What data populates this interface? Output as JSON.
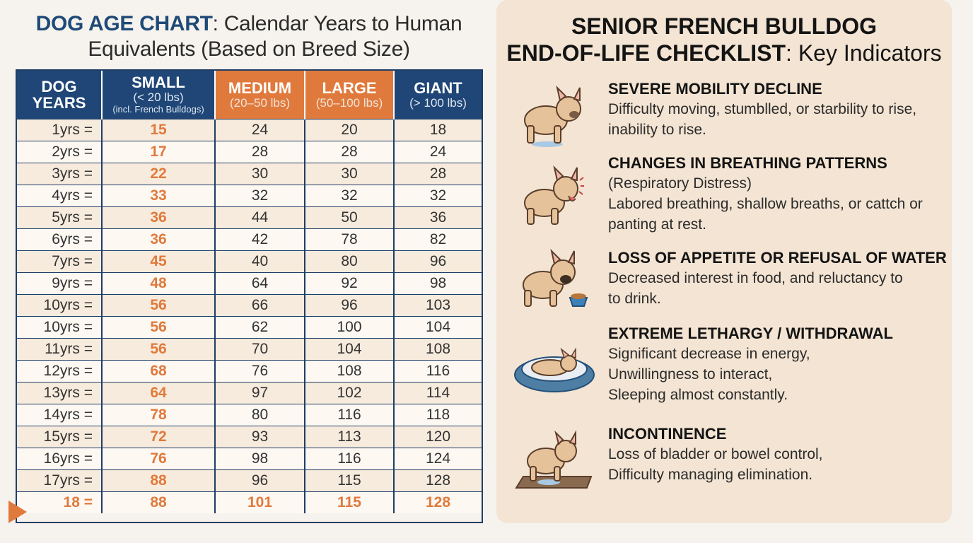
{
  "left": {
    "title_strong": "DOG AGE CHART",
    "title_rest": ": Calendar Years to Human Equivalents (Based on Breed Size)",
    "headers": [
      {
        "main": "DOG YEARS",
        "sub": "",
        "sub2": ""
      },
      {
        "main": "SMALL",
        "sub": "(< 20 lbs)",
        "sub2": "(incl. French Bulldogs)"
      },
      {
        "main": "MEDIUM",
        "sub": "(20–50 lbs)",
        "sub2": ""
      },
      {
        "main": "LARGE",
        "sub": "(50–100 lbs)",
        "sub2": ""
      },
      {
        "main": "GIANT",
        "sub": "(> 100 lbs)",
        "sub2": ""
      }
    ],
    "rows": [
      [
        "1yrs =",
        "15",
        "24",
        "20",
        "18"
      ],
      [
        "2yrs =",
        "17",
        "28",
        "28",
        "24"
      ],
      [
        "3yrs =",
        "22",
        "30",
        "30",
        "28"
      ],
      [
        "4yrs =",
        "33",
        "32",
        "32",
        "32"
      ],
      [
        "5yrs =",
        "36",
        "44",
        "50",
        "36"
      ],
      [
        "6yrs =",
        "36",
        "42",
        "78",
        "82"
      ],
      [
        "7yrs =",
        "45",
        "40",
        "80",
        "96"
      ],
      [
        "9yrs =",
        "48",
        "64",
        "92",
        "98"
      ],
      [
        "10yrs =",
        "56",
        "66",
        "96",
        "103"
      ],
      [
        "10yrs =",
        "56",
        "62",
        "100",
        "104"
      ],
      [
        "11yrs =",
        "56",
        "70",
        "104",
        "108"
      ],
      [
        "12yrs =",
        "68",
        "76",
        "108",
        "116"
      ],
      [
        "13yrs =",
        "64",
        "97",
        "102",
        "114"
      ],
      [
        "14yrs =",
        "78",
        "80",
        "116",
        "118"
      ],
      [
        "15yrs =",
        "72",
        "93",
        "113",
        "120"
      ],
      [
        "16yrs =",
        "76",
        "98",
        "116",
        "124"
      ],
      [
        "17yrs =",
        "88",
        "96",
        "115",
        "128"
      ],
      [
        "18 =",
        "88",
        "101",
        "115",
        "128"
      ]
    ]
  },
  "right": {
    "title_line1": "SENIOR FRENCH BULLDOG",
    "title_line2_strong": "END-OF-LIFE CHECKLIST",
    "title_line2_rest": ": Key Indicators",
    "items": [
      {
        "title": "SEVERE MOBILITY DECLINE",
        "desc": "Difficulty moving, stumblled, or starbility to rise,\ninability to rise.",
        "icon": "dog-standing-icon"
      },
      {
        "title": "CHANGES IN BREATHING PATTERNS",
        "desc": "(Respiratory Distress)\nLabored breathing, shallow breaths, or cattch or\npanting at rest.",
        "icon": "dog-panting-icon"
      },
      {
        "title": "LOSS OF APPETITE OR REFUSAL OF WATER",
        "desc": "Decreased interest in food, and reluctancy to\nto drink.",
        "icon": "dog-food-bowl-icon"
      },
      {
        "title": "EXTREME LETHARGY / WITHDRAWAL",
        "desc": "Significant decrease in energy,\nUnwillingness to interact,\nSleeping almost constantly.",
        "icon": "dog-bed-icon"
      },
      {
        "title": "INCONTINENCE",
        "desc": "Loss of bladder or bowel control,\n Difficulty managing elimination.",
        "icon": "dog-mat-icon"
      }
    ],
    "colors": {
      "navy": "#1f4676",
      "orange": "#e07a3c",
      "panel": "#f3e4d3"
    }
  }
}
